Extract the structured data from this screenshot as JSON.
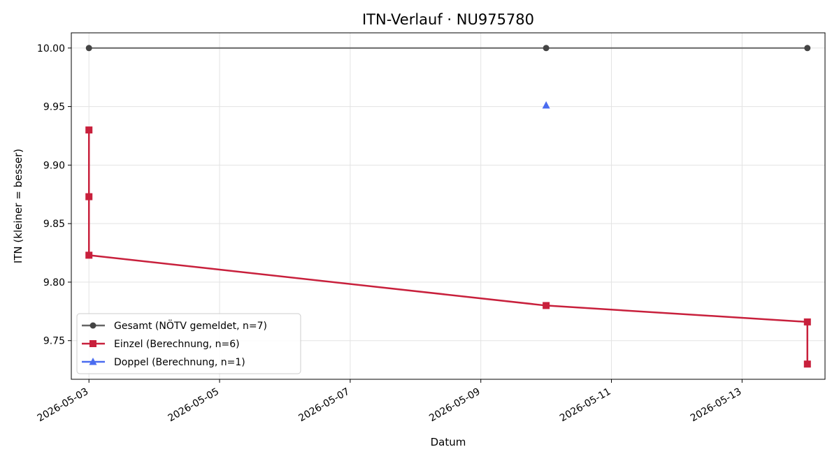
{
  "chart_data": {
    "type": "line",
    "title": "ITN-Verlauf · NU975780",
    "xlabel": "Datum",
    "ylabel": "ITN  (kleiner = besser)",
    "x_ticks": [
      "2026-05-03",
      "2026-05-05",
      "2026-05-07",
      "2026-05-09",
      "2026-05-11",
      "2026-05-13"
    ],
    "y_ticks": [
      "9.75",
      "9.80",
      "9.85",
      "9.90",
      "9.95",
      "10.00"
    ],
    "xlim": [
      "2026-05-02",
      "2026-05-14"
    ],
    "ylim": [
      9.717,
      10.013
    ],
    "grid": true,
    "legend_position": "lower-left",
    "series": [
      {
        "name": "Gesamt (NÖTV gemeldet, n=7)",
        "color": "#666666",
        "marker_color": "#444444",
        "marker": "circle",
        "points": [
          {
            "x": "2026-05-03",
            "y": 10.0
          },
          {
            "x": "2026-05-10",
            "y": 10.0
          },
          {
            "x": "2026-05-14",
            "y": 10.0
          }
        ]
      },
      {
        "name": "Einzel (Berechnung, n=6)",
        "color": "#c8203c",
        "marker_color": "#c8203c",
        "marker": "square",
        "points": [
          {
            "x": "2026-05-03",
            "y": 9.93
          },
          {
            "x": "2026-05-03",
            "y": 9.873
          },
          {
            "x": "2026-05-03",
            "y": 9.823
          },
          {
            "x": "2026-05-10",
            "y": 9.78
          },
          {
            "x": "2026-05-14",
            "y": 9.766
          },
          {
            "x": "2026-05-14",
            "y": 9.73
          }
        ]
      },
      {
        "name": "Doppel (Berechnung, n=1)",
        "color": "#4a6cf0",
        "marker_color": "#4a6cf0",
        "marker": "triangle",
        "points": [
          {
            "x": "2026-05-10",
            "y": 9.951
          }
        ]
      }
    ]
  }
}
